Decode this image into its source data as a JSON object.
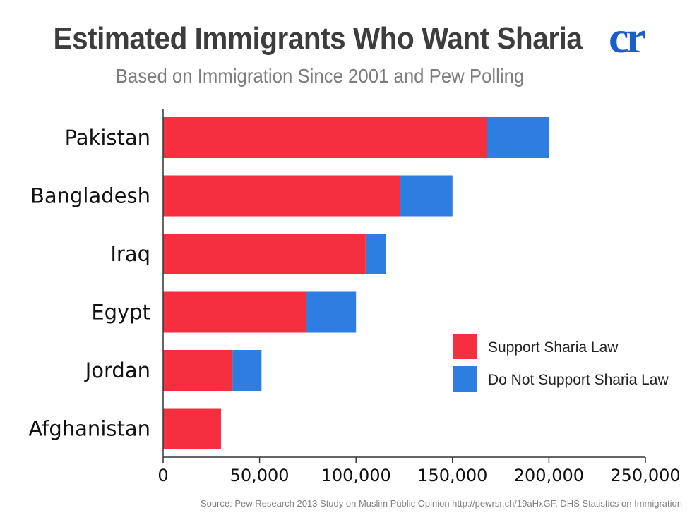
{
  "header": {
    "title": "Estimated Immigrants Who Want Sharia",
    "subtitle": "Based on Immigration Since 2001 and Pew Polling",
    "logo_text": "cr"
  },
  "footer": {
    "source": "Source: Pew Research 2013 Study on Muslim Public Opinion http://pewrsr.ch/19aHxGF, DHS Statistics on Immigration"
  },
  "colors": {
    "support": "#f52f3f",
    "not_support": "#2e7de0",
    "logo": "#1a5fc9",
    "axis": "#333333"
  },
  "chart_data": {
    "type": "bar",
    "orientation": "horizontal",
    "stacked": true,
    "title": "Estimated Immigrants Who Want Sharia",
    "subtitle": "Based on Immigration Since 2001 and Pew Polling",
    "categories": [
      "Pakistan",
      "Bangladesh",
      "Iraq",
      "Egypt",
      "Jordan",
      "Afghanistan"
    ],
    "series": [
      {
        "name": "Support Sharia Law",
        "color": "#f52f3f",
        "values": [
          168000,
          123000,
          105000,
          74000,
          36000,
          30000
        ]
      },
      {
        "name": "Do Not Support Sharia Law",
        "color": "#2e7de0",
        "values": [
          32000,
          27000,
          10500,
          26000,
          15000,
          0
        ]
      }
    ],
    "xlim": [
      0,
      250000
    ],
    "xticks": [
      "0",
      "50,000",
      "100,000",
      "150,000",
      "200,000",
      "250,000"
    ],
    "xtick_values": [
      0,
      50000,
      100000,
      150000,
      200000,
      250000
    ],
    "grid": false,
    "legend_position": "bottom-right",
    "source": "Source: Pew Research 2013 Study on Muslim Public Opinion http://pewrsr.ch/19aHxGF, DHS Statistics on Immigration"
  }
}
